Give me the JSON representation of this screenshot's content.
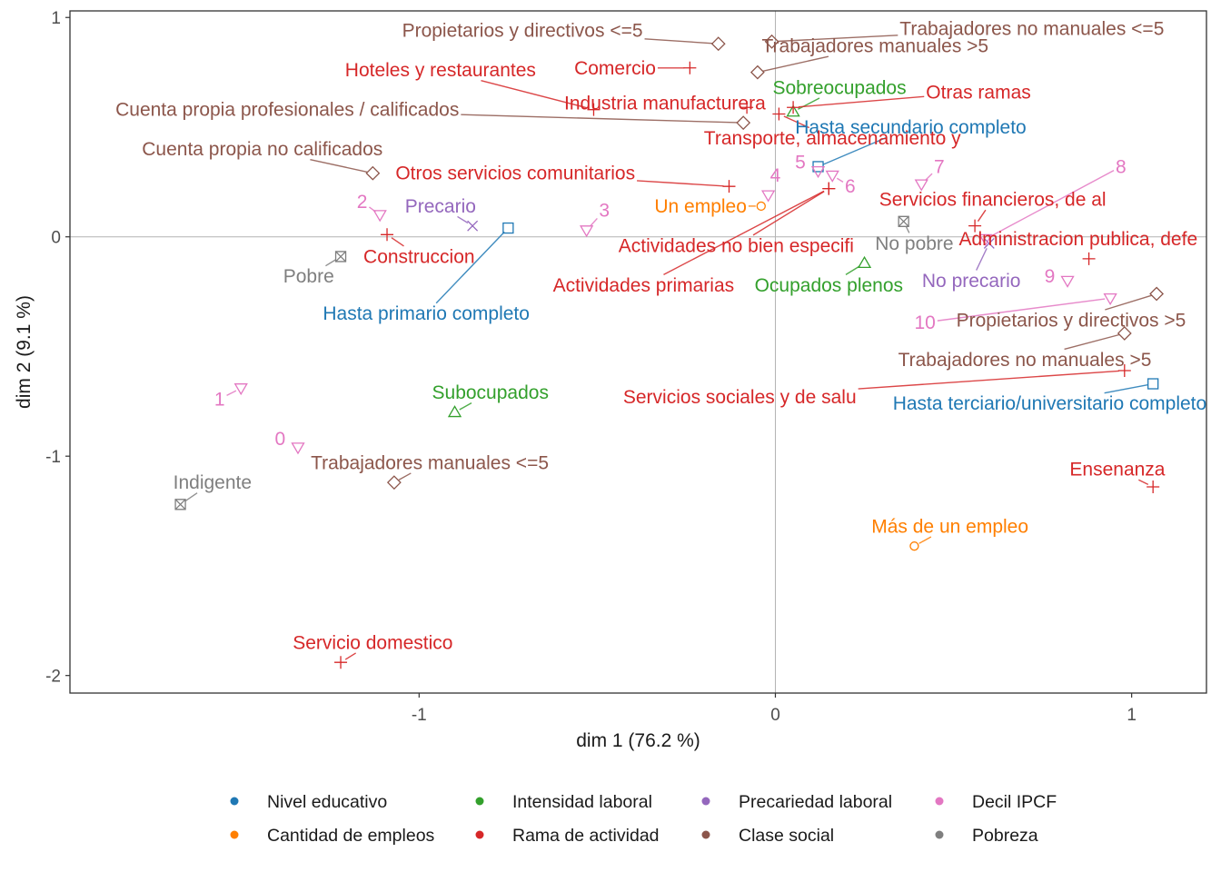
{
  "chart_data": {
    "type": "scatter",
    "xlabel": "dim 1 (76.2 %)",
    "ylabel": "dim 2 (9.1 %)",
    "xlim": [
      -1.98,
      1.21
    ],
    "ylim": [
      -2.08,
      1.03
    ],
    "xticks": [
      -1,
      0,
      1
    ],
    "xtick_labels": [
      "-1",
      "0",
      "1"
    ],
    "yticks": [
      1,
      0,
      -1,
      -2
    ],
    "ytick_labels": [
      "1",
      "0",
      "-1",
      "-2"
    ],
    "reference_lines": {
      "x": 0,
      "y": 0
    },
    "grid": false,
    "legend_position": "bottom",
    "groups": [
      {
        "name": "Nivel educativo",
        "color": "#1F78B4",
        "shape": "square"
      },
      {
        "name": "Cantidad de empleos",
        "color": "#FF7F00",
        "shape": "circle"
      },
      {
        "name": "Intensidad laboral",
        "color": "#33A02C",
        "shape": "triangle-up"
      },
      {
        "name": "Rama de actividad",
        "color": "#D62728",
        "shape": "plus"
      },
      {
        "name": "Precariedad laboral",
        "color": "#9467BD",
        "shape": "x"
      },
      {
        "name": "Clase social",
        "color": "#8C564B",
        "shape": "diamond"
      },
      {
        "name": "Decil IPCF",
        "color": "#E377C2",
        "shape": "triangle-down"
      },
      {
        "name": "Pobreza",
        "color": "#7F7F7F",
        "shape": "square-x"
      }
    ],
    "points": [
      {
        "label": "Hasta secundario completo",
        "group": "Nivel educativo",
        "x": 0.12,
        "y": 0.32,
        "lx": 0.38,
        "ly": 0.5
      },
      {
        "label": "Hasta primario completo",
        "group": "Nivel educativo",
        "x": -0.75,
        "y": 0.04,
        "lx": -0.98,
        "ly": -0.35
      },
      {
        "label": "Hasta terciario/universitario completo",
        "group": "Nivel educativo",
        "x": 1.06,
        "y": -0.67,
        "lx": 0.77,
        "ly": -0.76
      },
      {
        "label": "Un empleo",
        "group": "Cantidad de empleos",
        "x": -0.04,
        "y": 0.14,
        "lx": -0.21,
        "ly": 0.14
      },
      {
        "label": "Más de un empleo",
        "group": "Cantidad de empleos",
        "x": 0.39,
        "y": -1.41,
        "lx": 0.49,
        "ly": -1.32
      },
      {
        "label": "Sobreocupados",
        "group": "Intensidad laboral",
        "x": 0.05,
        "y": 0.57,
        "lx": 0.18,
        "ly": 0.68
      },
      {
        "label": "Ocupados plenos",
        "group": "Intensidad laboral",
        "x": 0.25,
        "y": -0.12,
        "lx": 0.15,
        "ly": -0.22
      },
      {
        "label": "Subocupados",
        "group": "Intensidad laboral",
        "x": -0.9,
        "y": -0.8,
        "lx": -0.8,
        "ly": -0.71
      },
      {
        "label": "Hoteles y restaurantes",
        "group": "Rama de actividad",
        "x": -0.51,
        "y": 0.58,
        "lx": -0.94,
        "ly": 0.76
      },
      {
        "label": "Comercio",
        "group": "Rama de actividad",
        "x": -0.24,
        "y": 0.77,
        "lx": -0.45,
        "ly": 0.77
      },
      {
        "label": "Industria manufacturera",
        "group": "Rama de actividad",
        "x": -0.08,
        "y": 0.59,
        "lx": -0.31,
        "ly": 0.61
      },
      {
        "label": "Otras ramas",
        "group": "Rama de actividad",
        "x": 0.05,
        "y": 0.59,
        "lx": 0.57,
        "ly": 0.66
      },
      {
        "label": "Transporte, almacenamiento y",
        "group": "Rama de actividad",
        "x": 0.01,
        "y": 0.56,
        "lx": 0.16,
        "ly": 0.45
      },
      {
        "label": "Otros servicios comunitarios",
        "group": "Rama de actividad",
        "x": -0.13,
        "y": 0.23,
        "lx": -0.73,
        "ly": 0.29
      },
      {
        "label": "Servicios financieros, de al",
        "group": "Rama de actividad",
        "x": 0.56,
        "y": 0.05,
        "lx": 0.61,
        "ly": 0.17
      },
      {
        "label": "Actividades no bien especifi",
        "group": "Rama de actividad",
        "x": 0.15,
        "y": 0.22,
        "lx": -0.11,
        "ly": -0.04
      },
      {
        "label": "Administracion publica, defe",
        "group": "Rama de actividad",
        "x": 0.88,
        "y": -0.1,
        "lx": 0.85,
        "ly": -0.01
      },
      {
        "label": "Construccion",
        "group": "Rama de actividad",
        "x": -1.09,
        "y": 0.01,
        "lx": -1.0,
        "ly": -0.09
      },
      {
        "label": "Actividades primarias",
        "group": "Rama de actividad",
        "x": 0.15,
        "y": 0.22,
        "lx": -0.37,
        "ly": -0.22
      },
      {
        "label": "Servicios sociales y de salu",
        "group": "Rama de actividad",
        "x": 0.98,
        "y": -0.61,
        "lx": -0.1,
        "ly": -0.73
      },
      {
        "label": "Ensenanza",
        "group": "Rama de actividad",
        "x": 1.06,
        "y": -1.14,
        "lx": 0.96,
        "ly": -1.06
      },
      {
        "label": "Servicio domestico",
        "group": "Rama de actividad",
        "x": -1.22,
        "y": -1.94,
        "lx": -1.13,
        "ly": -1.85
      },
      {
        "label": "Precario",
        "group": "Precariedad laboral",
        "x": -0.85,
        "y": 0.05,
        "lx": -0.94,
        "ly": 0.14
      },
      {
        "label": "No precario",
        "group": "Precariedad laboral",
        "x": 0.6,
        "y": -0.03,
        "lx": 0.55,
        "ly": -0.2
      },
      {
        "label": "Propietarios y directivos <=5",
        "group": "Clase social",
        "x": -0.16,
        "y": 0.88,
        "lx": -0.71,
        "ly": 0.94
      },
      {
        "label": "Trabajadores no manuales <=5",
        "group": "Clase social",
        "x": -0.01,
        "y": 0.89,
        "lx": 0.72,
        "ly": 0.95
      },
      {
        "label": "Trabajadores manuales >5",
        "group": "Clase social",
        "x": -0.05,
        "y": 0.75,
        "lx": 0.28,
        "ly": 0.87
      },
      {
        "label": "Cuenta propia profesionales / calificados",
        "group": "Clase social",
        "x": -0.09,
        "y": 0.52,
        "lx": -1.37,
        "ly": 0.58
      },
      {
        "label": "Cuenta propia no calificados",
        "group": "Clase social",
        "x": -1.13,
        "y": 0.29,
        "lx": -1.44,
        "ly": 0.4
      },
      {
        "label": "Propietarios y directivos >5",
        "group": "Clase social",
        "x": 1.07,
        "y": -0.26,
        "lx": 0.83,
        "ly": -0.38
      },
      {
        "label": "Trabajadores no manuales >5",
        "group": "Clase social",
        "x": 0.98,
        "y": -0.44,
        "lx": 0.7,
        "ly": -0.56
      },
      {
        "label": "Trabajadores manuales <=5",
        "group": "Clase social",
        "x": -1.07,
        "y": -1.12,
        "lx": -0.97,
        "ly": -1.03
      },
      {
        "label": "0",
        "group": "Decil IPCF",
        "x": -1.34,
        "y": -0.96,
        "lx": -1.39,
        "ly": -0.92
      },
      {
        "label": "1",
        "group": "Decil IPCF",
        "x": -1.5,
        "y": -0.69,
        "lx": -1.56,
        "ly": -0.74
      },
      {
        "label": "2",
        "group": "Decil IPCF",
        "x": -1.11,
        "y": 0.1,
        "lx": -1.16,
        "ly": 0.16
      },
      {
        "label": "3",
        "group": "Decil IPCF",
        "x": -0.53,
        "y": 0.03,
        "lx": -0.48,
        "ly": 0.12
      },
      {
        "label": "4",
        "group": "Decil IPCF",
        "x": -0.02,
        "y": 0.19,
        "lx": 0.0,
        "ly": 0.28
      },
      {
        "label": "5",
        "group": "Decil IPCF",
        "x": 0.12,
        "y": 0.3,
        "lx": 0.07,
        "ly": 0.34
      },
      {
        "label": "6",
        "group": "Decil IPCF",
        "x": 0.16,
        "y": 0.28,
        "lx": 0.21,
        "ly": 0.23
      },
      {
        "label": "7",
        "group": "Decil IPCF",
        "x": 0.41,
        "y": 0.24,
        "lx": 0.46,
        "ly": 0.32
      },
      {
        "label": "8",
        "group": "Decil IPCF",
        "x": 0.59,
        "y": -0.01,
        "lx": 0.97,
        "ly": 0.32
      },
      {
        "label": "9",
        "group": "Decil IPCF",
        "x": 0.82,
        "y": -0.2,
        "lx": 0.77,
        "ly": -0.18
      },
      {
        "label": "10",
        "group": "Decil IPCF",
        "x": 0.94,
        "y": -0.28,
        "lx": 0.42,
        "ly": -0.39
      },
      {
        "label": "No pobre",
        "group": "Pobreza",
        "x": 0.36,
        "y": 0.07,
        "lx": 0.39,
        "ly": -0.03
      },
      {
        "label": "Pobre",
        "group": "Pobreza",
        "x": -1.22,
        "y": -0.09,
        "lx": -1.31,
        "ly": -0.18
      },
      {
        "label": "Indigente",
        "group": "Pobreza",
        "x": -1.67,
        "y": -1.22,
        "lx": -1.58,
        "ly": -1.12
      }
    ]
  }
}
